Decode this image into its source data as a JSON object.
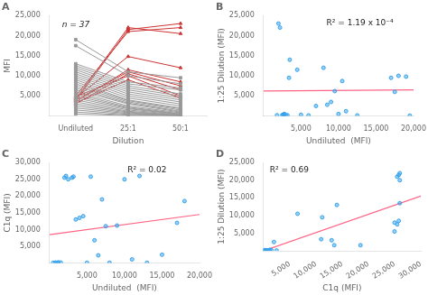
{
  "chart_data": [
    {
      "type": "line",
      "title": "A",
      "annotation": "n = 37",
      "categories": [
        "Undiluted",
        "25:1",
        "50:1"
      ],
      "x_label": "Dilution",
      "y_label": "MFI",
      "ylim": [
        0,
        25000
      ],
      "yticks": [
        {
          "value": 0,
          "label": ""
        },
        {
          "value": 5000,
          "label": "5,000"
        },
        {
          "value": 10000,
          "label": "10,000"
        },
        {
          "value": 15000,
          "label": "15,000"
        },
        {
          "value": 20000,
          "label": "20,000"
        },
        {
          "value": 25000,
          "label": "25,000"
        }
      ],
      "grid": false,
      "series": [
        {
          "color": "#999999",
          "marker": "square",
          "values": [
            19000,
            11000,
            9500
          ]
        },
        {
          "color": "#999999",
          "marker": "square",
          "values": [
            17500,
            10000,
            8000
          ]
        },
        {
          "color": "#999999",
          "marker": "square",
          "values": [
            13000,
            8500,
            7000
          ]
        },
        {
          "color": "#999999",
          "marker": "square",
          "values": [
            12500,
            8000,
            6500
          ]
        },
        {
          "color": "#999999",
          "marker": "square",
          "values": [
            12000,
            7500,
            5500
          ]
        },
        {
          "color": "#999999",
          "marker": "square",
          "values": [
            11500,
            7000,
            5000
          ]
        },
        {
          "color": "#999999",
          "marker": "square",
          "values": [
            11000,
            6500,
            4500
          ]
        },
        {
          "color": "#999999",
          "marker": "square",
          "values": [
            10500,
            6000,
            4000
          ]
        },
        {
          "color": "#999999",
          "marker": "square",
          "values": [
            10000,
            5500,
            3500
          ]
        },
        {
          "color": "#999999",
          "marker": "square",
          "values": [
            9500,
            5000,
            3000
          ]
        },
        {
          "color": "#999999",
          "marker": "square",
          "values": [
            9000,
            4500,
            2500
          ]
        },
        {
          "color": "#999999",
          "marker": "square",
          "values": [
            8500,
            4000,
            2000
          ]
        },
        {
          "color": "#999999",
          "marker": "square",
          "values": [
            8000,
            3800,
            1800
          ]
        },
        {
          "color": "#999999",
          "marker": "square",
          "values": [
            7500,
            3500,
            1500
          ]
        },
        {
          "color": "#999999",
          "marker": "square",
          "values": [
            7000,
            3200,
            1200
          ]
        },
        {
          "color": "#999999",
          "marker": "square",
          "values": [
            6500,
            3000,
            1000
          ]
        },
        {
          "color": "#999999",
          "marker": "square",
          "values": [
            6000,
            2500,
            800
          ]
        },
        {
          "color": "#999999",
          "marker": "square",
          "values": [
            5500,
            2200,
            600
          ]
        },
        {
          "color": "#999999",
          "marker": "square",
          "values": [
            5000,
            2000,
            500
          ]
        },
        {
          "color": "#999999",
          "marker": "square",
          "values": [
            4500,
            1800,
            400
          ]
        },
        {
          "color": "#999999",
          "marker": "square",
          "values": [
            4000,
            1500,
            300
          ]
        },
        {
          "color": "#999999",
          "marker": "square",
          "values": [
            3500,
            1200,
            200
          ]
        },
        {
          "color": "#999999",
          "marker": "square",
          "values": [
            3000,
            1000,
            150
          ]
        },
        {
          "color": "#999999",
          "marker": "square",
          "values": [
            2500,
            800,
            100
          ]
        },
        {
          "color": "#999999",
          "marker": "square",
          "values": [
            2000,
            600,
            80
          ]
        },
        {
          "color": "#999999",
          "marker": "square",
          "values": [
            1500,
            400,
            60
          ]
        },
        {
          "color": "#999999",
          "marker": "square",
          "values": [
            1000,
            200,
            40
          ]
        },
        {
          "color": "#999999",
          "marker": "square",
          "values": [
            500,
            100,
            20
          ]
        },
        {
          "color": "#cc3333",
          "marker": "triangle",
          "values": [
            3800,
            21500,
            23000
          ]
        },
        {
          "color": "#cc3333",
          "marker": "triangle",
          "values": [
            4200,
            22000,
            20500
          ]
        },
        {
          "color": "#cc3333",
          "marker": "triangle",
          "values": [
            5000,
            21000,
            22000
          ]
        },
        {
          "color": "#cc3333",
          "marker": "triangle",
          "values": [
            4500,
            14800,
            12000
          ]
        },
        {
          "color": "#cc3333",
          "marker": "triangle",
          "values": [
            3500,
            11500,
            8500
          ]
        },
        {
          "color": "#cc3333",
          "marker": "triangle",
          "values": [
            4000,
            11000,
            7500
          ]
        },
        {
          "color": "#cc3333",
          "marker": "triangle",
          "values": [
            3000,
            10500,
            6500
          ]
        },
        {
          "color": "#cc3333",
          "marker": "triangle",
          "values": [
            4800,
            10000,
            5000
          ]
        },
        {
          "color": "#cc3333",
          "marker": "triangle",
          "values": [
            3200,
            9000,
            4500
          ]
        }
      ]
    },
    {
      "type": "scatter",
      "title": "B",
      "annotation": "R² = 1.19 x 10⁻⁴",
      "x_label": "Undiluted  (MFI)",
      "y_label": "1:25 Dilution (MFI)",
      "xlim": [
        0,
        20000
      ],
      "ylim": [
        0,
        25000
      ],
      "xticks": [
        {
          "value": 0,
          "label": ""
        },
        {
          "value": 5000,
          "label": "5,000"
        },
        {
          "value": 10000,
          "label": "10,000"
        },
        {
          "value": 15000,
          "label": "15,000"
        },
        {
          "value": 20000,
          "label": "20,000"
        }
      ],
      "yticks": [
        {
          "value": 0,
          "label": ""
        },
        {
          "value": 5000,
          "label": "5,000"
        },
        {
          "value": 10000,
          "label": "10,000"
        },
        {
          "value": 15000,
          "label": "15,000"
        },
        {
          "value": 20000,
          "label": "20,000"
        },
        {
          "value": 25000,
          "label": "25,000"
        }
      ],
      "grid": false,
      "series": [
        {
          "type": "scatter",
          "x": [
            1800,
            2000,
            2200,
            2500,
            2600,
            2700,
            2800,
            3000,
            3200,
            3400,
            3500,
            4500,
            5000,
            6000,
            7000,
            8000,
            8500,
            9000,
            9500,
            10000,
            10500,
            11000,
            12500,
            17000,
            17500,
            18000,
            19000,
            19500
          ],
          "values": [
            200,
            23000,
            22000,
            200,
            300,
            400,
            500,
            100,
            200,
            9500,
            14000,
            11500,
            300,
            150,
            2500,
            12000,
            2800,
            3500,
            6200,
            500,
            8700,
            1200,
            150,
            9500,
            6000,
            10000,
            9800,
            100
          ]
        },
        {
          "type": "line",
          "x": [
            0,
            20000
          ],
          "values": [
            6200,
            6500
          ]
        }
      ]
    },
    {
      "type": "scatter",
      "title": "C",
      "annotation": "R² = 0.02",
      "x_label": "Undiluted  (MFI)",
      "y_label": "C1q (MFI)",
      "xlim": [
        0,
        20000
      ],
      "ylim": [
        0,
        30000
      ],
      "xticks": [
        {
          "value": 0,
          "label": ""
        },
        {
          "value": 5000,
          "label": "5,000"
        },
        {
          "value": 10000,
          "label": "10,000"
        },
        {
          "value": 15000,
          "label": "15,000"
        },
        {
          "value": 20000,
          "label": "20,000"
        }
      ],
      "yticks": [
        {
          "value": 0,
          "label": ""
        },
        {
          "value": 5000,
          "label": "5,000"
        },
        {
          "value": 10000,
          "label": "10,000"
        },
        {
          "value": 15000,
          "label": "15,000"
        },
        {
          "value": 20000,
          "label": "20,000"
        },
        {
          "value": 25000,
          "label": "25,000"
        },
        {
          "value": 30000,
          "label": "30,000"
        }
      ],
      "grid": false,
      "series": [
        {
          "type": "scatter",
          "x": [
            500,
            800,
            1000,
            1200,
            1500,
            2000,
            2200,
            2500,
            3000,
            3200,
            3500,
            4000,
            4500,
            5000,
            5500,
            6000,
            6500,
            7000,
            7500,
            8000,
            9000,
            10000,
            11000,
            12000,
            13000,
            15000,
            17000,
            18000
          ],
          "values": [
            100,
            150,
            100,
            200,
            150,
            25500,
            26000,
            25000,
            25500,
            25800,
            13000,
            13500,
            14000,
            100,
            25800,
            6800,
            2300,
            19000,
            11000,
            100,
            11200,
            25000,
            1100,
            26000,
            100,
            2500,
            12000,
            18500
          ]
        },
        {
          "type": "line",
          "x": [
            0,
            20000
          ],
          "values": [
            8500,
            14500
          ]
        }
      ]
    },
    {
      "type": "scatter",
      "title": "D",
      "annotation": "R² = 0.69",
      "x_label": "C1q (MFI)",
      "y_label": "1:25 Dilution (MFI)",
      "xlim": [
        0,
        30000
      ],
      "ylim": [
        0,
        25000
      ],
      "xticks": [
        {
          "value": 0,
          "label": ""
        },
        {
          "value": 5000,
          "label": "5,000"
        },
        {
          "value": 10000,
          "label": "10,000"
        },
        {
          "value": 15000,
          "label": "15,000"
        },
        {
          "value": 20000,
          "label": "20,000"
        },
        {
          "value": 25000,
          "label": "25,000"
        },
        {
          "value": 30000,
          "label": "30,000"
        }
      ],
      "yticks": [
        {
          "value": 0,
          "label": ""
        },
        {
          "value": 5000,
          "label": "5,000"
        },
        {
          "value": 10000,
          "label": "10,000"
        },
        {
          "value": 15000,
          "label": "15,000"
        },
        {
          "value": 20000,
          "label": "20,000"
        },
        {
          "value": 25000,
          "label": "25,000"
        }
      ],
      "grid": false,
      "series": [
        {
          "type": "scatter",
          "x": [
            100,
            150,
            200,
            300,
            500,
            800,
            1000,
            1200,
            1500,
            2000,
            2500,
            6500,
            11000,
            11200,
            13000,
            13500,
            14000,
            18500,
            25000,
            25500,
            25800,
            26000,
            26000,
            25800,
            25000,
            25500,
            26000
          ],
          "values": [
            100,
            200,
            100,
            100,
            200,
            100,
            150,
            300,
            200,
            2500,
            100,
            10500,
            3300,
            9500,
            3000,
            1600,
            13000,
            1600,
            8000,
            21000,
            21500,
            22000,
            13500,
            8500,
            5500,
            7500,
            20000
          ]
        },
        {
          "type": "line",
          "x": [
            0,
            30000
          ],
          "values": [
            0,
            15500
          ]
        }
      ]
    }
  ]
}
